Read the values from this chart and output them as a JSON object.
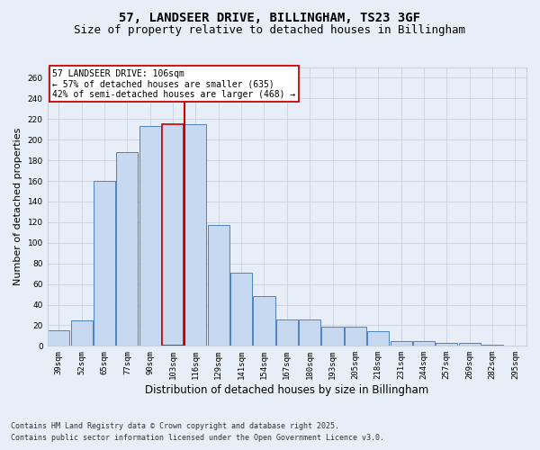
{
  "title_line1": "57, LANDSEER DRIVE, BILLINGHAM, TS23 3GF",
  "title_line2": "Size of property relative to detached houses in Billingham",
  "xlabel": "Distribution of detached houses by size in Billingham",
  "ylabel": "Number of detached properties",
  "categories": [
    "39sqm",
    "52sqm",
    "65sqm",
    "77sqm",
    "90sqm",
    "103sqm",
    "116sqm",
    "129sqm",
    "141sqm",
    "154sqm",
    "167sqm",
    "180sqm",
    "193sqm",
    "205sqm",
    "218sqm",
    "231sqm",
    "244sqm",
    "257sqm",
    "269sqm",
    "282sqm",
    "295sqm"
  ],
  "values": [
    15,
    25,
    160,
    188,
    213,
    215,
    215,
    117,
    71,
    48,
    26,
    26,
    19,
    19,
    14,
    5,
    5,
    3,
    3,
    1,
    0
  ],
  "bar_color": "#c6d9f0",
  "bar_edge_color": "#4f81bd",
  "highlight_bar_index": 5,
  "highlight_bar_edge_color": "#cc0000",
  "vline_color": "#cc0000",
  "annotation_title": "57 LANDSEER DRIVE: 106sqm",
  "annotation_line1": "← 57% of detached houses are smaller (635)",
  "annotation_line2": "42% of semi-detached houses are larger (468) →",
  "annotation_box_facecolor": "#ffffff",
  "annotation_box_edgecolor": "#cc0000",
  "ylim": [
    0,
    270
  ],
  "yticks": [
    0,
    20,
    40,
    60,
    80,
    100,
    120,
    140,
    160,
    180,
    200,
    220,
    240,
    260
  ],
  "bg_color": "#e8eef7",
  "plot_bg_color": "#e8eef7",
  "grid_color": "#c8d0de",
  "footer_line1": "Contains HM Land Registry data © Crown copyright and database right 2025.",
  "footer_line2": "Contains public sector information licensed under the Open Government Licence v3.0.",
  "title_fontsize": 10,
  "subtitle_fontsize": 9,
  "tick_fontsize": 6.5,
  "ylabel_fontsize": 8,
  "xlabel_fontsize": 8.5,
  "annotation_fontsize": 7,
  "footer_fontsize": 6
}
